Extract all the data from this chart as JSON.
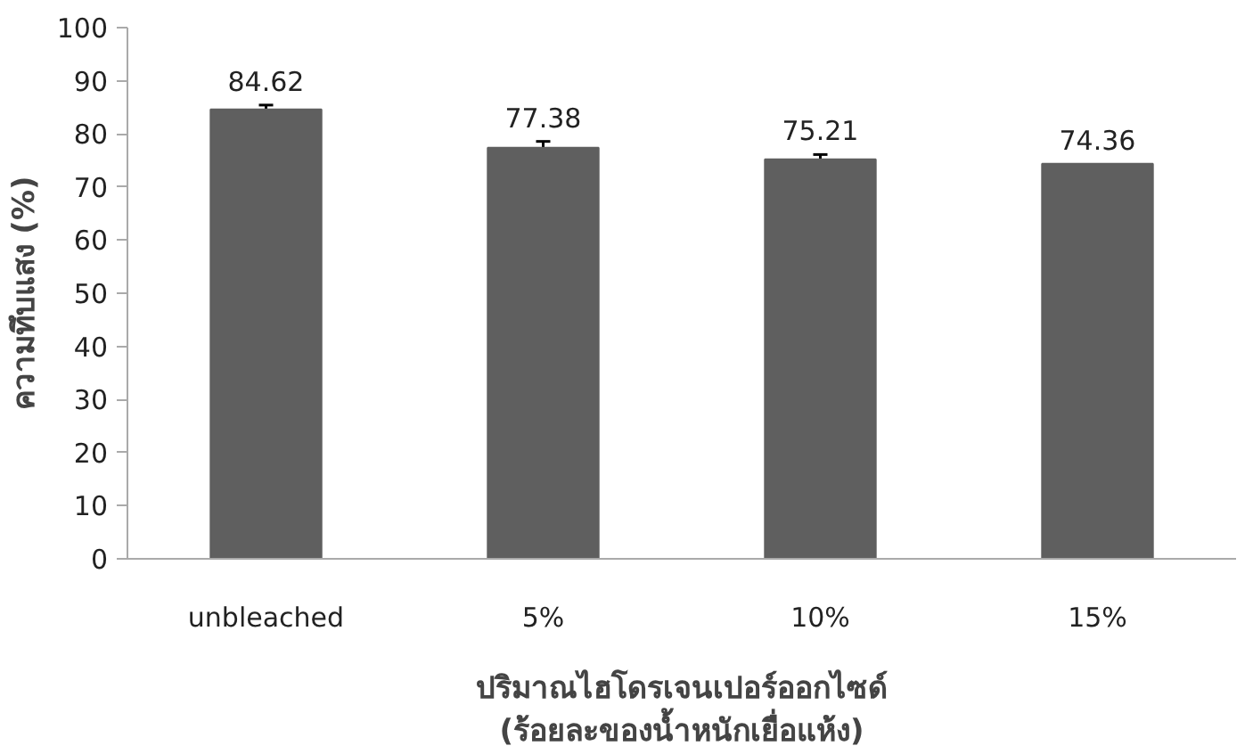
{
  "chart_data": {
    "type": "bar",
    "ylabel": "ความทึบแสง (%)",
    "xlabel": "ปริมาณไฮโดรเจนเปอร์ออกไซด์\n(ร้อยละของน้ำหนักเยื่อแห้ง)",
    "categories": [
      "unbleached",
      "5%",
      "10%",
      "15%"
    ],
    "values": [
      84.62,
      77.38,
      75.21,
      74.36
    ],
    "errors": [
      0.8,
      1.2,
      0.9,
      null
    ],
    "color": "#5f5f5f",
    "data_labels": true,
    "ylim": [
      0,
      100
    ],
    "yticks": [
      0,
      10,
      20,
      30,
      40,
      50,
      60,
      70,
      80,
      90,
      100
    ],
    "grid": false
  }
}
